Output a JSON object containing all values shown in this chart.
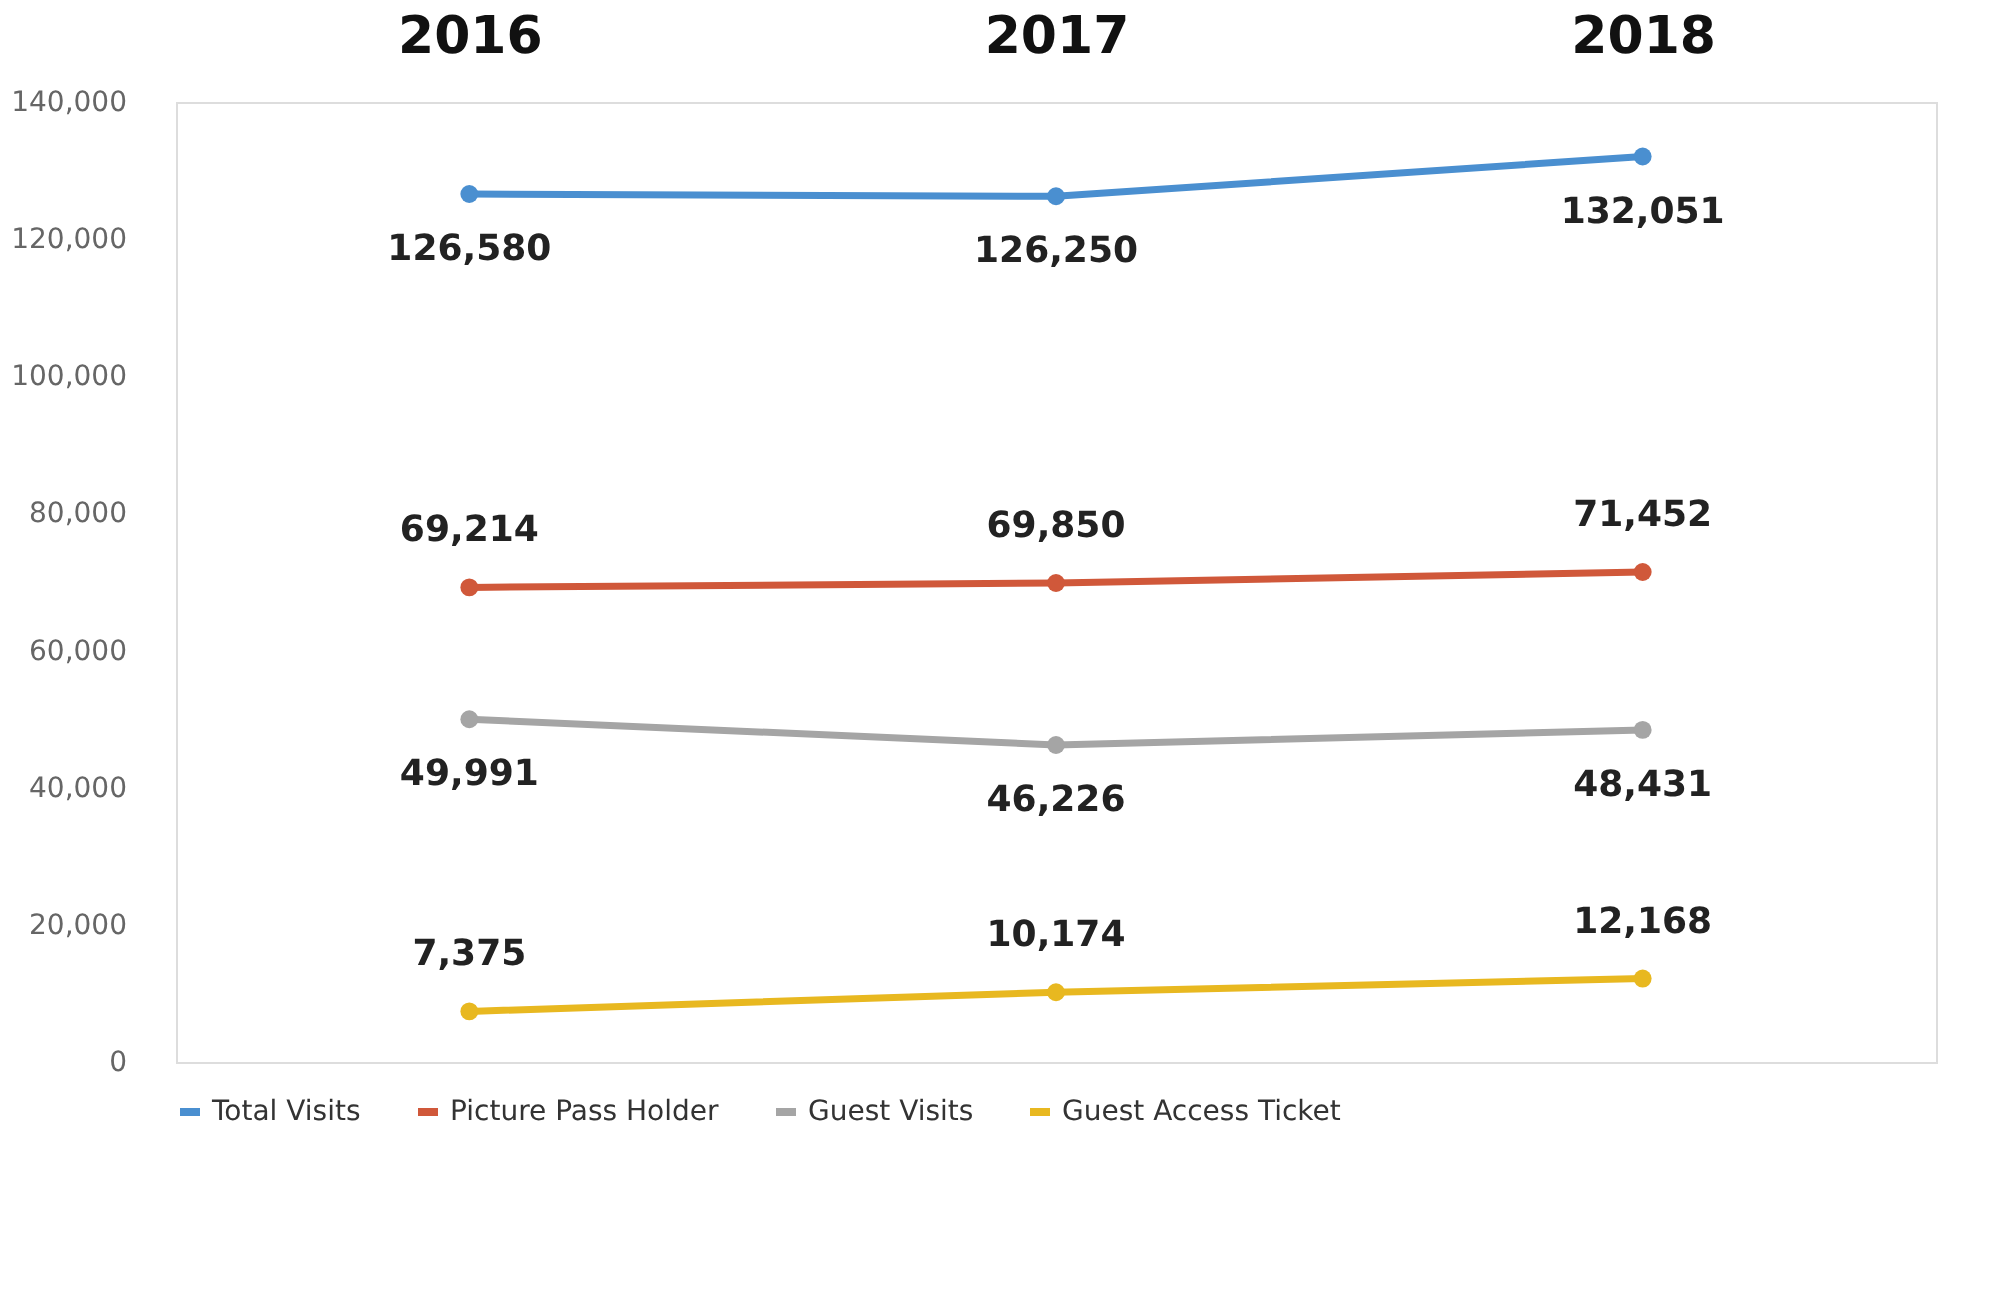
{
  "chart_data": {
    "type": "line",
    "categories": [
      "2016",
      "2017",
      "2018"
    ],
    "series": [
      {
        "name": "Total Visits",
        "color": "#4a8fd0",
        "values": [
          126580,
          126250,
          132051
        ],
        "value_labels": [
          "126,580",
          "126,250",
          "132,051"
        ]
      },
      {
        "name": "Picture Pass Holder",
        "color": "#d0583a",
        "values": [
          69214,
          69850,
          71452
        ],
        "value_labels": [
          "69,214",
          "69,850",
          "71,452"
        ]
      },
      {
        "name": "Guest Visits",
        "color": "#a5a5a5",
        "values": [
          49991,
          46226,
          48431
        ],
        "value_labels": [
          "49,991",
          "46,226",
          "48,431"
        ]
      },
      {
        "name": "Guest Access Ticket",
        "color": "#e8b820",
        "values": [
          7375,
          10174,
          12168
        ],
        "value_labels": [
          "7,375",
          "10,174",
          "12,168"
        ]
      }
    ],
    "ylim": [
      0,
      140000
    ],
    "yticks": [
      0,
      {
        "value": 20000,
        "label": "20,000"
      },
      {
        "value": 40000,
        "label": "40,000"
      },
      {
        "value": 60000,
        "label": "60,000"
      },
      {
        "value": 80000,
        "label": "80,000"
      },
      {
        "value": 100000,
        "label": "100,000"
      },
      {
        "value": 120000,
        "label": "120,000"
      },
      {
        "value": 140000,
        "label": "140,000"
      }
    ],
    "grid": false,
    "legend": "bottom",
    "marker": "circle",
    "line_style": "solid"
  }
}
